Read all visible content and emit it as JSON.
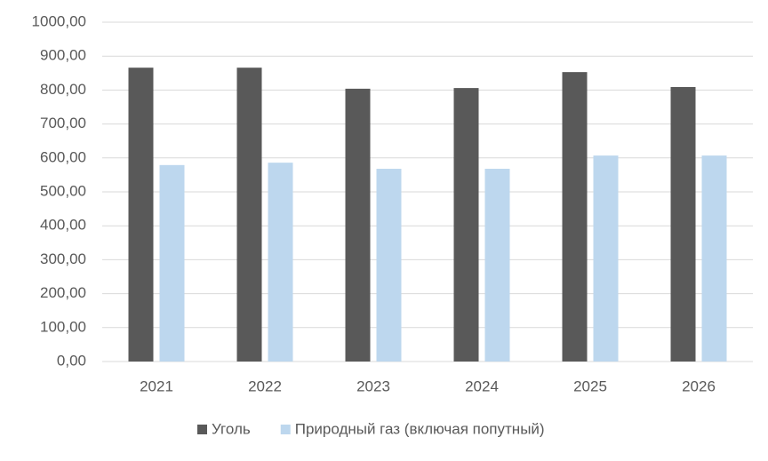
{
  "chart_data": {
    "type": "bar",
    "categories": [
      "2021",
      "2022",
      "2023",
      "2024",
      "2025",
      "2026"
    ],
    "series": [
      {
        "name": "Уголь",
        "color": "#595959",
        "values": [
          866,
          866,
          804,
          806,
          853,
          809
        ]
      },
      {
        "name": "Природный газ (включая попутный)",
        "color": "#bdd7ee",
        "values": [
          579,
          586,
          568,
          568,
          607,
          607
        ]
      }
    ],
    "ylim": [
      0,
      1000
    ],
    "yticks": [
      {
        "value": 0,
        "label": "0,00"
      },
      {
        "value": 100,
        "label": "100,00"
      },
      {
        "value": 200,
        "label": "200,00"
      },
      {
        "value": 300,
        "label": "300,00"
      },
      {
        "value": 400,
        "label": "400,00"
      },
      {
        "value": 500,
        "label": "500,00"
      },
      {
        "value": 600,
        "label": "600,00"
      },
      {
        "value": 700,
        "label": "700,00"
      },
      {
        "value": 800,
        "label": "800,00"
      },
      {
        "value": 900,
        "label": "900,00"
      },
      {
        "value": 1000,
        "label": "1000,00"
      }
    ],
    "grid": true,
    "legend": "bottom"
  }
}
